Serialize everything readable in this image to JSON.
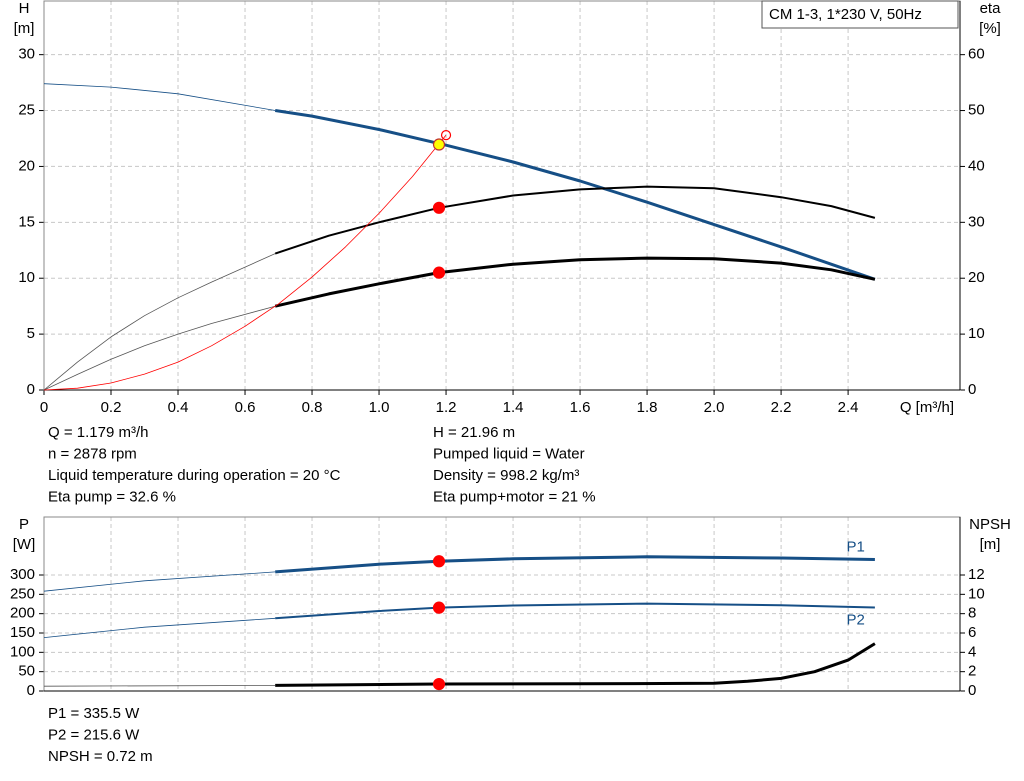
{
  "chart_data": [
    {
      "type": "line",
      "title": "CM 1-3, 1*230 V, 50Hz",
      "ylabel": [
        "H",
        "[m]"
      ],
      "y2label": [
        "eta",
        "[%]"
      ],
      "xlabel": "Q [m³/h]",
      "xlim": [
        0,
        2.734
      ],
      "ylim": [
        0,
        34.8
      ],
      "y2lim": [
        0,
        69.6
      ],
      "grid": true,
      "xticks": [
        0,
        0.2,
        0.4,
        0.6,
        0.8,
        {
          "value": 1,
          "label": "1.0"
        },
        1.2,
        1.4,
        1.6,
        1.8,
        {
          "value": 2,
          "label": "2.0"
        },
        2.2,
        2.4
      ],
      "yticks": [
        0,
        5,
        10,
        15,
        20,
        25,
        30
      ],
      "y2ticks": [
        0,
        10,
        20,
        30,
        40,
        50,
        60
      ],
      "series": [
        {
          "color": "#164f86",
          "width": 0.8,
          "x": [
            0,
            0.2,
            0.4,
            0.69
          ],
          "values": [
            27.4,
            27.1,
            26.5,
            25.0
          ]
        },
        {
          "color": "#164f86",
          "width": 3,
          "x": [
            0.69,
            0.8,
            1.0,
            1.2,
            1.4,
            1.6,
            1.8,
            2.0,
            2.2,
            2.48
          ],
          "values": [
            25.0,
            24.5,
            23.3,
            21.9,
            20.4,
            18.7,
            16.8,
            14.8,
            12.8,
            9.9
          ]
        },
        {
          "color": "#555555",
          "width": 0.8,
          "axis": "y2",
          "x": [
            0,
            0.1,
            0.2,
            0.3,
            0.4,
            0.5,
            0.69
          ],
          "values": [
            0,
            5,
            9.5,
            13.3,
            16.5,
            19.3,
            24.4
          ]
        },
        {
          "color": "#000000",
          "width": 2,
          "axis": "y2",
          "x": [
            0.69,
            0.85,
            1.0,
            1.179,
            1.4,
            1.6,
            1.8,
            2.0,
            2.2,
            2.35,
            2.48
          ],
          "values": [
            24.4,
            27.6,
            30,
            32.6,
            34.8,
            35.9,
            36.4,
            36.1,
            34.5,
            32.9,
            30.8
          ]
        },
        {
          "color": "#555555",
          "width": 0.8,
          "axis": "y2",
          "x": [
            0,
            0.1,
            0.2,
            0.3,
            0.4,
            0.5,
            0.69
          ],
          "values": [
            0,
            2.8,
            5.5,
            7.9,
            10,
            11.9,
            15
          ]
        },
        {
          "color": "#000000",
          "width": 3,
          "axis": "y2",
          "x": [
            0.69,
            0.85,
            1.0,
            1.179,
            1.4,
            1.6,
            1.8,
            2.0,
            2.2,
            2.35,
            2.48
          ],
          "values": [
            15,
            17.2,
            19,
            21,
            22.5,
            23.3,
            23.6,
            23.5,
            22.7,
            21.5,
            19.8
          ]
        },
        {
          "color": "#ff0000",
          "width": 0.8,
          "x": [
            0,
            0.1,
            0.2,
            0.3,
            0.4,
            0.5,
            0.6,
            0.7,
            0.8,
            0.9,
            1.0,
            1.1,
            1.2
          ],
          "values": [
            0,
            0.16,
            0.63,
            1.42,
            2.5,
            3.95,
            5.7,
            7.7,
            10.1,
            12.8,
            15.8,
            19.1,
            22.8
          ]
        }
      ],
      "points": [
        {
          "x": 1.179,
          "y": 32.6,
          "axis": "y2",
          "fill": "#ff0000",
          "stroke": "#ff0000"
        },
        {
          "x": 1.179,
          "y": 21,
          "axis": "y2",
          "fill": "#ff0000",
          "stroke": "#ff0000"
        },
        {
          "x": 1.2,
          "y": 22.8,
          "fill": "none",
          "stroke": "#ff0000"
        },
        {
          "x": 1.179,
          "y": 21.96,
          "fill": "#ffff00",
          "stroke": "#c03030"
        }
      ],
      "info": [
        "Q = 1.179 m³/h",
        "n = 2878 rpm",
        "Liquid temperature during operation = 20 °C",
        "Eta pump = 32.6 %",
        "H = 21.96 m",
        "Pumped liquid = Water",
        "Density = 998.2 kg/m³",
        "Eta pump+motor = 21 %"
      ]
    },
    {
      "type": "line",
      "ylabel": [
        "P",
        "[W]"
      ],
      "y2label": [
        "NPSH",
        "[m]"
      ],
      "xlim": [
        0,
        2.734
      ],
      "ylim": [
        0,
        450
      ],
      "y2lim": [
        0,
        18
      ],
      "grid": true,
      "yticks": [
        0,
        50,
        100,
        150,
        200,
        250,
        300
      ],
      "y2ticks": [
        0,
        2,
        4,
        6,
        8,
        10,
        12
      ],
      "series": [
        {
          "color": "#164f86",
          "width": 0.8,
          "x": [
            0,
            0.3,
            0.69
          ],
          "values": [
            258,
            285,
            308
          ]
        },
        {
          "name": "P1",
          "color": "#164f86",
          "width": 3,
          "x": [
            0.69,
            1.0,
            1.179,
            1.4,
            1.8,
            2.2,
            2.48
          ],
          "values": [
            308,
            328,
            335.5,
            342,
            347,
            344,
            340
          ]
        },
        {
          "color": "#164f86",
          "width": 0.8,
          "x": [
            0,
            0.3,
            0.69
          ],
          "values": [
            138,
            165,
            188
          ]
        },
        {
          "name": "P2",
          "color": "#164f86",
          "width": 2,
          "x": [
            0.69,
            1.0,
            1.179,
            1.4,
            1.8,
            2.2,
            2.48
          ],
          "values": [
            188,
            207,
            215.6,
            221,
            226,
            222,
            216
          ]
        },
        {
          "color": "#555555",
          "width": 0.8,
          "axis": "y2",
          "x": [
            0,
            0.69
          ],
          "values": [
            0.5,
            0.58
          ]
        },
        {
          "color": "#000000",
          "width": 3,
          "axis": "y2",
          "x": [
            0.69,
            1.179,
            1.6,
            2.0,
            2.1,
            2.2,
            2.3,
            2.4,
            2.48
          ],
          "values": [
            0.58,
            0.72,
            0.74,
            0.8,
            1.0,
            1.3,
            2.0,
            3.2,
            4.9
          ]
        }
      ],
      "points": [
        {
          "x": 1.179,
          "y": 335.5,
          "fill": "#ff0000",
          "stroke": "#ff0000"
        },
        {
          "x": 1.179,
          "y": 215.6,
          "fill": "#ff0000",
          "stroke": "#ff0000"
        },
        {
          "x": 1.179,
          "y": 0.72,
          "axis": "y2",
          "fill": "#ff0000",
          "stroke": "#ff0000"
        }
      ],
      "info": [
        "P1 = 335.5 W",
        "P2 = 215.6 W",
        "NPSH = 0.72 m"
      ]
    }
  ]
}
